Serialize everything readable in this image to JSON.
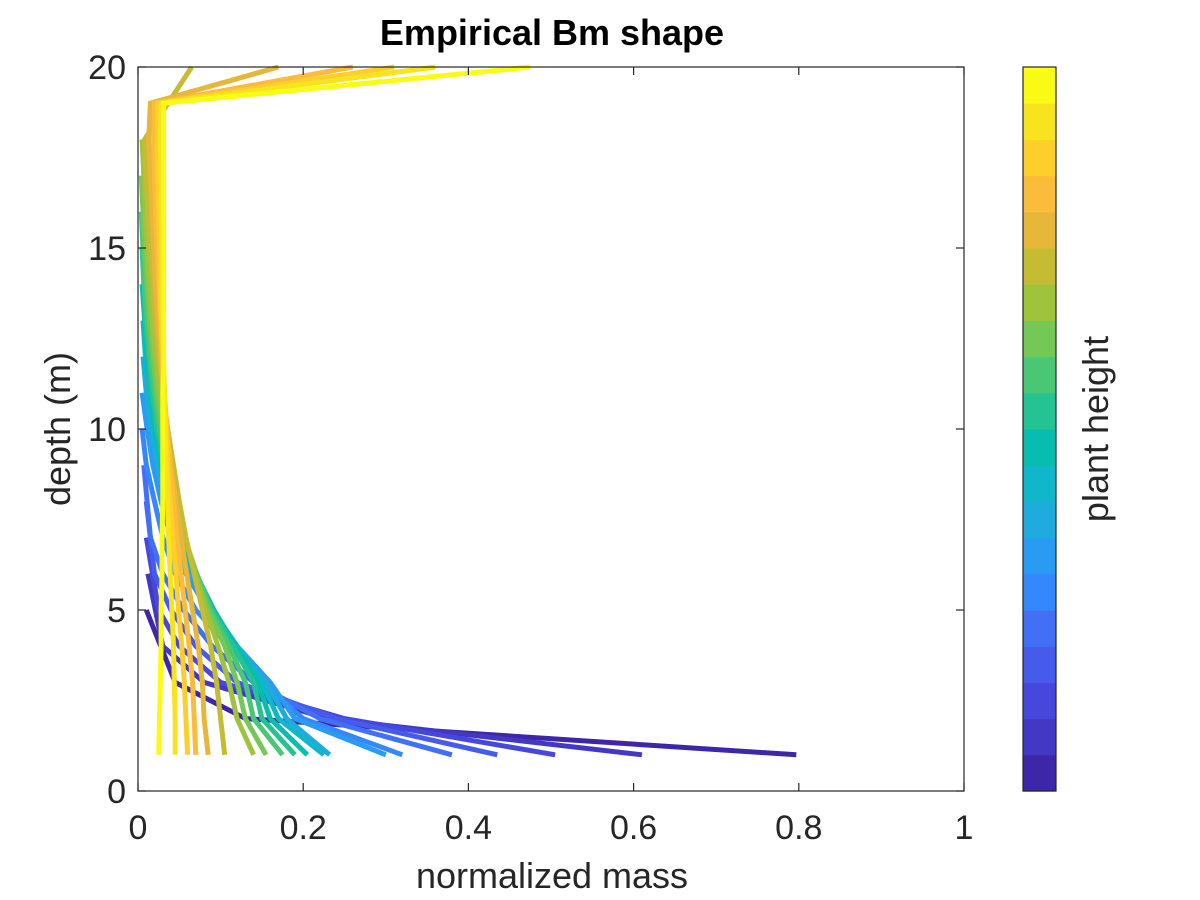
{
  "chart_data": {
    "type": "line",
    "title": "Empirical Bm shape",
    "xlabel": "normalized mass",
    "ylabel": "depth (m)",
    "xlim": [
      0,
      1
    ],
    "ylim": [
      0,
      20
    ],
    "xticks": [
      0,
      0.2,
      0.4,
      0.6,
      0.8,
      1
    ],
    "xtick_labels": [
      "0",
      "0.2",
      "0.4",
      "0.6",
      "0.8",
      "1"
    ],
    "yticks": [
      0,
      5,
      10,
      15,
      20
    ],
    "ytick_labels": [
      "0",
      "5",
      "10",
      "15",
      "20"
    ],
    "grid": false,
    "colorbar": {
      "label": "plant height",
      "colors": [
        "#3e26a8",
        "#4337c5",
        "#4648dd",
        "#465aeb",
        "#4170f6",
        "#3587fd",
        "#2a9bf3",
        "#1fabde",
        "#10b6ca",
        "#06bdaf",
        "#24c394",
        "#4ac775",
        "#74c855",
        "#a0c33e",
        "#c5bc33",
        "#e6b739",
        "#fbbb3b",
        "#fecf2b",
        "#f7e31e",
        "#f9fb15"
      ]
    },
    "series_color_order": "index 0 = shortest plant (dark blue), last = tallest plant (yellow)",
    "series": [
      {
        "x": [
          0.797,
          0.13,
          0.045,
          0.01
        ],
        "y": [
          1,
          2,
          3,
          5
        ]
      },
      {
        "x": [
          0.61,
          0.23,
          0.08,
          0.03,
          0.012
        ],
        "y": [
          1,
          2,
          3,
          4,
          6
        ]
      },
      {
        "x": [
          0.505,
          0.25,
          0.1,
          0.05,
          0.025,
          0.01
        ],
        "y": [
          1,
          2,
          3,
          4,
          5,
          7
        ]
      },
      {
        "x": [
          0.435,
          0.24,
          0.12,
          0.07,
          0.04,
          0.02,
          0.01
        ],
        "y": [
          1,
          2,
          3,
          4,
          5,
          6,
          8
        ]
      },
      {
        "x": [
          0.38,
          0.22,
          0.14,
          0.09,
          0.055,
          0.03,
          0.015,
          0.007
        ],
        "y": [
          1,
          2,
          3,
          4,
          5,
          6,
          7,
          9
        ]
      },
      {
        "x": [
          0.32,
          0.2,
          0.15,
          0.11,
          0.07,
          0.045,
          0.03,
          0.02,
          0.01,
          0.005
        ],
        "y": [
          1,
          2,
          3,
          4,
          5,
          6,
          7,
          8,
          9,
          10
        ]
      },
      {
        "x": [
          0.3,
          0.19,
          0.16,
          0.12,
          0.085,
          0.058,
          0.04,
          0.028,
          0.018,
          0.011,
          0.005
        ],
        "y": [
          1,
          2,
          3,
          4,
          5,
          6,
          7,
          8,
          9,
          10,
          11
        ]
      },
      {
        "x": [
          0.232,
          0.18,
          0.155,
          0.12,
          0.09,
          0.065,
          0.047,
          0.034,
          0.024,
          0.016,
          0.01,
          0.006
        ],
        "y": [
          1,
          2,
          3,
          4,
          5,
          6,
          7,
          8,
          9,
          10,
          11,
          12
        ]
      },
      {
        "x": [
          0.225,
          0.17,
          0.15,
          0.12,
          0.09,
          0.068,
          0.05,
          0.037,
          0.027,
          0.019,
          0.013,
          0.009,
          0.006
        ],
        "y": [
          1,
          2,
          3,
          4,
          5,
          6,
          7,
          8,
          9,
          10,
          11,
          12,
          13
        ]
      },
      {
        "x": [
          0.205,
          0.16,
          0.145,
          0.118,
          0.092,
          0.07,
          0.052,
          0.039,
          0.029,
          0.021,
          0.016,
          0.011,
          0.008,
          0.005
        ],
        "y": [
          1,
          2,
          3,
          4,
          5,
          6,
          7,
          8,
          9,
          10,
          11,
          12,
          13,
          14
        ]
      },
      {
        "x": [
          0.19,
          0.15,
          0.14,
          0.115,
          0.09,
          0.071,
          0.055,
          0.042,
          0.031,
          0.023,
          0.017,
          0.013,
          0.009,
          0.007,
          0.005
        ],
        "y": [
          1,
          2,
          3,
          4,
          5,
          6,
          7,
          8,
          9,
          10,
          11,
          12,
          13,
          14,
          15
        ]
      },
      {
        "x": [
          0.175,
          0.14,
          0.13,
          0.11,
          0.088,
          0.071,
          0.056,
          0.044,
          0.034,
          0.026,
          0.02,
          0.015,
          0.011,
          0.008,
          0.006,
          0.004
        ],
        "y": [
          1,
          2,
          3,
          4,
          5,
          6,
          7,
          8,
          9,
          10,
          11,
          12,
          13,
          14,
          15,
          16
        ]
      },
      {
        "x": [
          0.155,
          0.13,
          0.12,
          0.105,
          0.085,
          0.07,
          0.057,
          0.046,
          0.037,
          0.029,
          0.023,
          0.018,
          0.014,
          0.011,
          0.008,
          0.006,
          0.004
        ],
        "y": [
          1,
          2,
          3,
          4,
          5,
          6,
          7,
          8,
          9,
          10,
          11,
          12,
          13,
          14,
          15,
          16,
          17
        ]
      },
      {
        "x": [
          0.14,
          0.12,
          0.11,
          0.097,
          0.082,
          0.069,
          0.057,
          0.047,
          0.039,
          0.032,
          0.026,
          0.021,
          0.017,
          0.014,
          0.011,
          0.009,
          0.007,
          0.005
        ],
        "y": [
          1,
          2,
          3,
          4,
          5,
          6,
          7,
          8,
          9,
          10,
          11,
          12,
          13,
          14,
          15,
          16,
          17,
          18
        ]
      },
      {
        "x": [
          0.105,
          0.1,
          0.095,
          0.088,
          0.078,
          0.068,
          0.058,
          0.05,
          0.043,
          0.036,
          0.03,
          0.025,
          0.021,
          0.018,
          0.015,
          0.012,
          0.01,
          0.008,
          0.065
        ],
        "y": [
          1,
          2,
          3,
          4,
          5,
          6,
          7,
          8,
          9,
          10,
          11,
          12,
          13,
          14,
          15,
          16,
          17,
          18,
          20
        ]
      },
      {
        "x": [
          0.085,
          0.08,
          0.078,
          0.073,
          0.066,
          0.059,
          0.052,
          0.046,
          0.04,
          0.035,
          0.031,
          0.027,
          0.024,
          0.021,
          0.019,
          0.017,
          0.015,
          0.013,
          0.015,
          0.17
        ],
        "y": [
          1,
          2,
          3,
          4,
          5,
          6,
          7,
          8,
          9,
          10,
          11,
          12,
          13,
          14,
          15,
          16,
          17,
          18,
          19,
          20
        ]
      },
      {
        "x": [
          0.07,
          0.068,
          0.066,
          0.062,
          0.057,
          0.052,
          0.047,
          0.043,
          0.039,
          0.035,
          0.032,
          0.029,
          0.027,
          0.025,
          0.023,
          0.021,
          0.02,
          0.019,
          0.02,
          0.26
        ],
        "y": [
          1,
          2,
          3,
          4,
          5,
          6,
          7,
          8,
          9,
          10,
          11,
          12,
          13,
          14,
          15,
          16,
          17,
          18,
          19,
          20
        ]
      },
      {
        "x": [
          0.06,
          0.058,
          0.056,
          0.053,
          0.049,
          0.046,
          0.042,
          0.039,
          0.036,
          0.034,
          0.032,
          0.03,
          0.028,
          0.027,
          0.026,
          0.025,
          0.024,
          0.023,
          0.024,
          0.31
        ],
        "y": [
          1,
          2,
          3,
          4,
          5,
          6,
          7,
          8,
          9,
          10,
          11,
          12,
          13,
          14,
          15,
          16,
          17,
          18,
          19,
          20
        ]
      },
      {
        "x": [
          0.045,
          0.045,
          0.044,
          0.043,
          0.041,
          0.039,
          0.037,
          0.036,
          0.034,
          0.033,
          0.032,
          0.031,
          0.03,
          0.029,
          0.029,
          0.028,
          0.028,
          0.027,
          0.028,
          0.36
        ],
        "y": [
          1,
          2,
          3,
          4,
          5,
          6,
          7,
          8,
          9,
          10,
          11,
          12,
          13,
          14,
          15,
          16,
          17,
          18,
          19,
          20
        ]
      },
      {
        "x": [
          0.025,
          0.026,
          0.027,
          0.028,
          0.028,
          0.029,
          0.029,
          0.03,
          0.03,
          0.03,
          0.03,
          0.031,
          0.031,
          0.031,
          0.031,
          0.031,
          0.031,
          0.031,
          0.031,
          0.475
        ],
        "y": [
          1,
          2,
          3,
          4,
          5,
          6,
          7,
          8,
          9,
          10,
          11,
          12,
          13,
          14,
          15,
          16,
          17,
          18,
          19,
          20
        ]
      }
    ]
  }
}
